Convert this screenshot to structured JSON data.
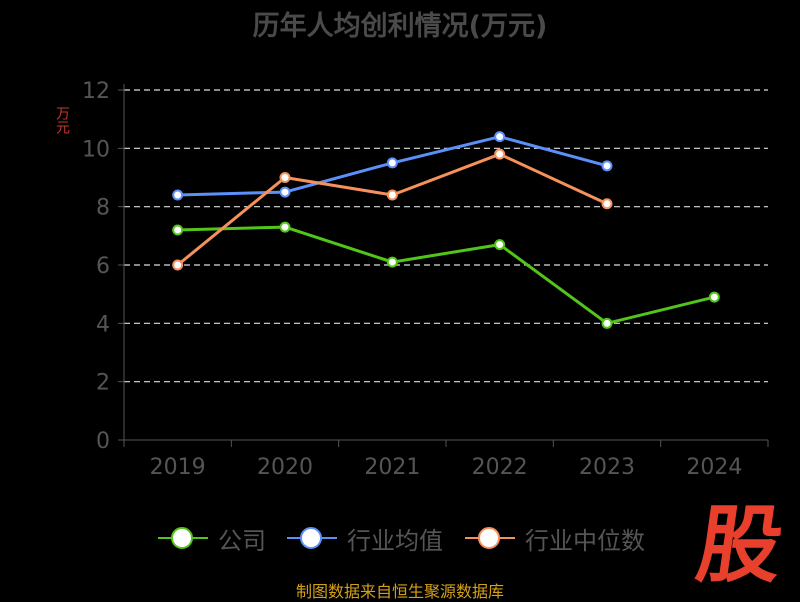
{
  "chart_data": {
    "type": "line",
    "title": "历年人均创利情况(万元)",
    "ylabel": "万元",
    "xlabel": "",
    "categories": [
      "2019",
      "2020",
      "2021",
      "2022",
      "2023",
      "2024"
    ],
    "ylim": [
      0,
      12
    ],
    "yticks": [
      0,
      2,
      4,
      6,
      8,
      10,
      12
    ],
    "grid": true,
    "legend_position": "bottom",
    "series": [
      {
        "name": "公司",
        "color": "#52c41a",
        "values": [
          7.2,
          7.3,
          6.1,
          6.7,
          4.0,
          4.9
        ]
      },
      {
        "name": "行业均值",
        "color": "#5b8ff9",
        "values": [
          8.4,
          8.5,
          9.5,
          10.4,
          9.4,
          null
        ]
      },
      {
        "name": "行业中位数",
        "color": "#f6915b",
        "values": [
          6.0,
          9.0,
          8.4,
          9.8,
          8.1,
          null
        ]
      }
    ]
  },
  "footer": {
    "source": "制图数据来自恒生聚源数据库"
  },
  "logo": {
    "text": "股"
  }
}
